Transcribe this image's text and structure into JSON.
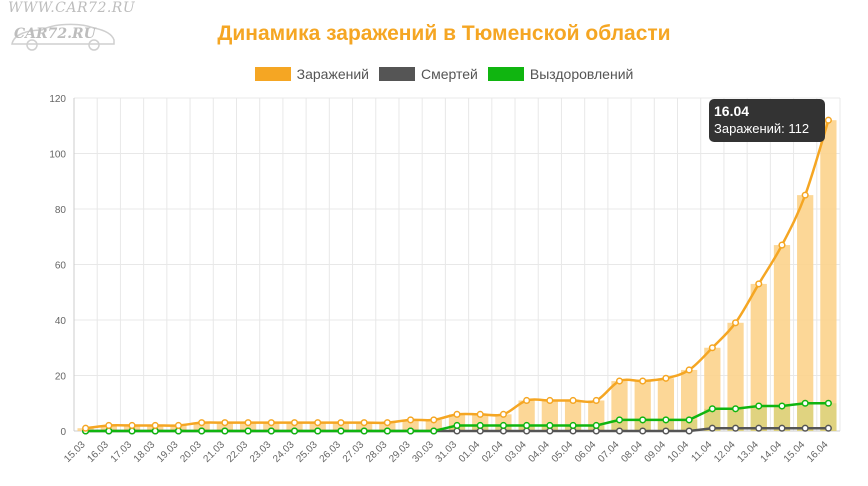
{
  "watermark": {
    "url": "WWW.CAR72.RU",
    "logo": "CAR72.RU"
  },
  "colors": {
    "title": "#f5a623",
    "infections": "#f5a623",
    "infections_bar": "#fcd38c",
    "deaths": "#555555",
    "recovered": "#10b510",
    "grid": "#e8e8e8",
    "tick_text": "#666666"
  },
  "tooltip": {
    "title": "16.04",
    "body": "Заражений: 112"
  },
  "chart_data": {
    "type": "line",
    "title": "Динамика заражений в Тюменской области",
    "legend_position": "top",
    "grid": true,
    "ylim": [
      0,
      120
    ],
    "yticks": [
      0,
      20,
      40,
      60,
      80,
      100,
      120
    ],
    "categories": [
      "15.03",
      "16.03",
      "17.03",
      "18.03",
      "19.03",
      "20.03",
      "21.03",
      "22.03",
      "23.03",
      "24.03",
      "25.03",
      "26.03",
      "27.03",
      "28.03",
      "29.03",
      "30.03",
      "31.03",
      "01.04",
      "02.04",
      "03.04",
      "04.04",
      "05.04",
      "06.04",
      "07.04",
      "08.04",
      "09.04",
      "10.04",
      "11.04",
      "12.04",
      "13.04",
      "14.04",
      "15.04",
      "16.04"
    ],
    "series": [
      {
        "name": "Заражений",
        "values": [
          1,
          2,
          2,
          2,
          2,
          3,
          3,
          3,
          3,
          3,
          3,
          3,
          3,
          3,
          4,
          4,
          6,
          6,
          6,
          11,
          11,
          11,
          11,
          18,
          18,
          19,
          22,
          30,
          39,
          53,
          67,
          85,
          112
        ]
      },
      {
        "name": "Смертей",
        "values": [
          0,
          0,
          0,
          0,
          0,
          0,
          0,
          0,
          0,
          0,
          0,
          0,
          0,
          0,
          0,
          0,
          0,
          0,
          0,
          0,
          0,
          0,
          0,
          0,
          0,
          0,
          0,
          1,
          1,
          1,
          1,
          1,
          1
        ]
      },
      {
        "name": "Выздоровлений",
        "values": [
          0,
          0,
          0,
          0,
          0,
          0,
          0,
          0,
          0,
          0,
          0,
          0,
          0,
          0,
          0,
          0,
          2,
          2,
          2,
          2,
          2,
          2,
          2,
          4,
          4,
          4,
          4,
          8,
          8,
          9,
          9,
          10,
          10
        ]
      }
    ]
  }
}
